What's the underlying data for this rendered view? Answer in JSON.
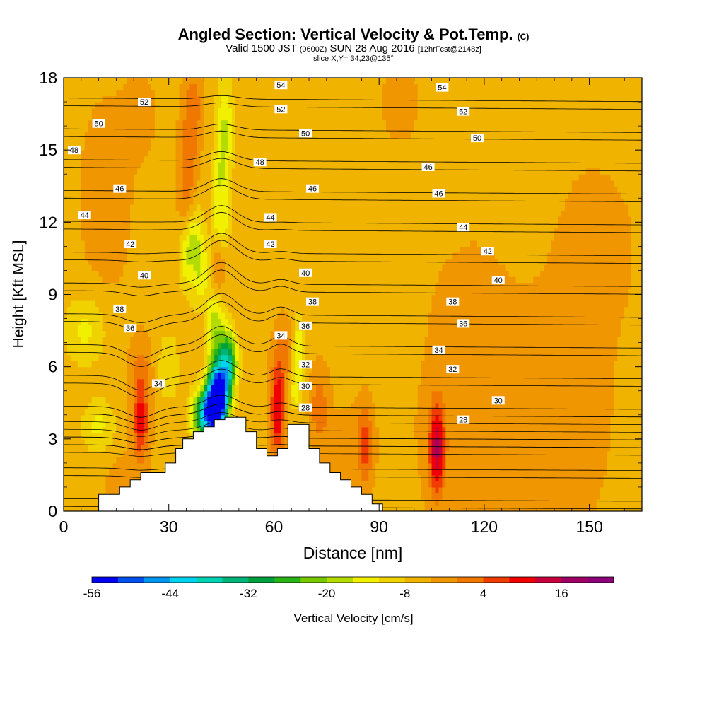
{
  "header": {
    "title_main": "Angled Section: Vertical Velocity & Pot.Temp.",
    "title_tag": "(C)",
    "valid_prefix": "Valid 1500 JST",
    "valid_utc": "(0600Z)",
    "valid_date": "SUN 28 Aug 2016",
    "forecast_tag": "[12hrFcst@2148z]",
    "slice": "slice X,Y= 34,23@135°"
  },
  "chart_data": {
    "type": "heatmap",
    "title": "Angled Section: Vertical Velocity & Pot.Temp.",
    "xlabel": "Distance [nm]",
    "ylabel": "Height [Kft MSL]",
    "xlim": [
      0,
      165
    ],
    "ylim": [
      0,
      18
    ],
    "x_ticks": [
      0,
      30,
      60,
      90,
      120,
      150
    ],
    "y_ticks": [
      0,
      3,
      6,
      9,
      12,
      15,
      18
    ],
    "grid": false,
    "colorbar": {
      "label": "Vertical Velocity [cm/s]",
      "tick_labels": [
        "-56",
        "-44",
        "-32",
        "-20",
        "-8",
        "4",
        "16"
      ],
      "tick_values": [
        -56,
        -44,
        -32,
        -20,
        -8,
        4,
        16
      ],
      "min": -56,
      "max": 24,
      "step": 4,
      "colors": [
        "#0000f0",
        "#0050f0",
        "#0096f0",
        "#00d2f0",
        "#00d2b4",
        "#00b478",
        "#00a03c",
        "#28b414",
        "#78c800",
        "#b4dc00",
        "#f0f000",
        "#f0d200",
        "#f0b400",
        "#f09600",
        "#f07800",
        "#f03c00",
        "#f00000",
        "#c8003c",
        "#a00064",
        "#8c0078"
      ]
    },
    "terrain_kft": [
      [
        0,
        0
      ],
      [
        10,
        0
      ],
      [
        10,
        0.7
      ],
      [
        16,
        0.7
      ],
      [
        16,
        1.0
      ],
      [
        19,
        1.0
      ],
      [
        19,
        1.3
      ],
      [
        22,
        1.3
      ],
      [
        22,
        1.6
      ],
      [
        29,
        1.6
      ],
      [
        29,
        2.0
      ],
      [
        32,
        2.0
      ],
      [
        32,
        2.6
      ],
      [
        34,
        2.6
      ],
      [
        34,
        3.0
      ],
      [
        37,
        3.0
      ],
      [
        37,
        3.3
      ],
      [
        40,
        3.3
      ],
      [
        40,
        3.5
      ],
      [
        43,
        3.5
      ],
      [
        43,
        3.8
      ],
      [
        46,
        3.8
      ],
      [
        46,
        3.9
      ],
      [
        52,
        3.9
      ],
      [
        52,
        3.3
      ],
      [
        55,
        3.3
      ],
      [
        55,
        2.6
      ],
      [
        58,
        2.6
      ],
      [
        58,
        2.3
      ],
      [
        61,
        2.3
      ],
      [
        61,
        2.6
      ],
      [
        64,
        2.6
      ],
      [
        64,
        3.6
      ],
      [
        70,
        3.6
      ],
      [
        70,
        2.6
      ],
      [
        73,
        2.6
      ],
      [
        73,
        2.0
      ],
      [
        76,
        2.0
      ],
      [
        76,
        1.6
      ],
      [
        79,
        1.6
      ],
      [
        79,
        1.3
      ],
      [
        82,
        1.3
      ],
      [
        82,
        1.0
      ],
      [
        85,
        1.0
      ],
      [
        85,
        0.7
      ],
      [
        88,
        0.7
      ],
      [
        88,
        0.3
      ],
      [
        91,
        0.3
      ],
      [
        91,
        0
      ]
    ],
    "theta_levels_c": [
      28,
      30,
      32,
      34,
      36,
      38,
      40,
      42,
      44,
      46,
      48,
      50,
      52,
      54
    ],
    "theta_labels": [
      {
        "text": "54",
        "x": 62,
        "y": 17.7
      },
      {
        "text": "54",
        "x": 108,
        "y": 17.6
      },
      {
        "text": "52",
        "x": 23,
        "y": 17.0
      },
      {
        "text": "52",
        "x": 62,
        "y": 16.7
      },
      {
        "text": "52",
        "x": 114,
        "y": 16.6
      },
      {
        "text": "50",
        "x": 10,
        "y": 16.1
      },
      {
        "text": "50",
        "x": 69,
        "y": 15.7
      },
      {
        "text": "50",
        "x": 118,
        "y": 15.5
      },
      {
        "text": "48",
        "x": 3,
        "y": 15.0
      },
      {
        "text": "48",
        "x": 56,
        "y": 14.5
      },
      {
        "text": "46",
        "x": 104,
        "y": 14.3
      },
      {
        "text": "46",
        "x": 16,
        "y": 13.4
      },
      {
        "text": "46",
        "x": 71,
        "y": 13.4
      },
      {
        "text": "46",
        "x": 107,
        "y": 13.2
      },
      {
        "text": "44",
        "x": 6,
        "y": 12.3
      },
      {
        "text": "44",
        "x": 59,
        "y": 12.2
      },
      {
        "text": "44",
        "x": 114,
        "y": 11.8
      },
      {
        "text": "42",
        "x": 19,
        "y": 11.1
      },
      {
        "text": "42",
        "x": 59,
        "y": 11.1
      },
      {
        "text": "42",
        "x": 121,
        "y": 10.8
      },
      {
        "text": "40",
        "x": 23,
        "y": 9.8
      },
      {
        "text": "40",
        "x": 69,
        "y": 9.9
      },
      {
        "text": "40",
        "x": 124,
        "y": 9.6
      },
      {
        "text": "38",
        "x": 16,
        "y": 8.4
      },
      {
        "text": "38",
        "x": 71,
        "y": 8.7
      },
      {
        "text": "38",
        "x": 111,
        "y": 8.7
      },
      {
        "text": "36",
        "x": 19,
        "y": 7.6
      },
      {
        "text": "36",
        "x": 69,
        "y": 7.7
      },
      {
        "text": "36",
        "x": 114,
        "y": 7.8
      },
      {
        "text": "34",
        "x": 62,
        "y": 7.3
      },
      {
        "text": "34",
        "x": 107,
        "y": 6.7
      },
      {
        "text": "34",
        "x": 27,
        "y": 5.3
      },
      {
        "text": "32",
        "x": 69,
        "y": 6.1
      },
      {
        "text": "32",
        "x": 111,
        "y": 5.9
      },
      {
        "text": "30",
        "x": 69,
        "y": 5.2
      },
      {
        "text": "30",
        "x": 124,
        "y": 4.6
      },
      {
        "text": "28",
        "x": 69,
        "y": 4.3
      },
      {
        "text": "28",
        "x": 114,
        "y": 3.8
      }
    ],
    "w_features": [
      {
        "x": 44,
        "y": 4.8,
        "sx": 3,
        "sy": 1.3,
        "w": -56
      },
      {
        "x": 41,
        "y": 4.0,
        "sx": 4,
        "sy": 1.0,
        "w": -38
      },
      {
        "x": 47,
        "y": 6.2,
        "sx": 2.5,
        "sy": 1.2,
        "w": -28
      },
      {
        "x": 43,
        "y": 7.6,
        "sx": 3,
        "sy": 1.5,
        "w": -14
      },
      {
        "x": 39.5,
        "y": 9.4,
        "sx": 2.5,
        "sy": 1.8,
        "w": -12
      },
      {
        "x": 37,
        "y": 11.3,
        "sx": 2.5,
        "sy": 1.6,
        "w": -12
      },
      {
        "x": 34.5,
        "y": 10.4,
        "sx": 2,
        "sy": 1.3,
        "w": -8
      },
      {
        "x": 45,
        "y": 12.0,
        "sx": 2.5,
        "sy": 1.2,
        "w": -10
      },
      {
        "x": 46,
        "y": 15.8,
        "sx": 2.5,
        "sy": 2.2,
        "w": -12
      },
      {
        "x": 44,
        "y": 13.8,
        "sx": 2.5,
        "sy": 1.2,
        "w": -7
      },
      {
        "x": 67,
        "y": 6.6,
        "sx": 1.7,
        "sy": 1.4,
        "w": -12
      },
      {
        "x": 66,
        "y": 4.9,
        "sx": 1.8,
        "sy": 0.8,
        "w": -7
      },
      {
        "x": 22,
        "y": 3.7,
        "sx": 2.3,
        "sy": 1.6,
        "w": 14
      },
      {
        "x": 22,
        "y": 5.8,
        "sx": 3,
        "sy": 1.4,
        "w": 6
      },
      {
        "x": 35.5,
        "y": 13.8,
        "sx": 2.5,
        "sy": 2.6,
        "w": 8
      },
      {
        "x": 37,
        "y": 16.8,
        "sx": 2.5,
        "sy": 1.6,
        "w": 7
      },
      {
        "x": 40,
        "y": 8.2,
        "sx": 2,
        "sy": 1.6,
        "w": 9
      },
      {
        "x": 44,
        "y": 10.1,
        "sx": 1.8,
        "sy": 1.2,
        "w": 7
      },
      {
        "x": 61,
        "y": 4.2,
        "sx": 2,
        "sy": 2.0,
        "w": 17
      },
      {
        "x": 63,
        "y": 6.6,
        "sx": 2.5,
        "sy": 1.3,
        "w": 6
      },
      {
        "x": 73,
        "y": 4.3,
        "sx": 2.5,
        "sy": 1.5,
        "w": 8
      },
      {
        "x": 86,
        "y": 2.8,
        "sx": 2.2,
        "sy": 1.5,
        "w": 12
      },
      {
        "x": 106.5,
        "y": 2.6,
        "sx": 2.2,
        "sy": 1.8,
        "w": 20
      },
      {
        "x": 120,
        "y": 5,
        "sx": 20,
        "sy": 6,
        "w": 3
      },
      {
        "x": 146,
        "y": 5.5,
        "sx": 12,
        "sy": 7,
        "w": 2
      },
      {
        "x": 153,
        "y": 11,
        "sx": 10,
        "sy": 3,
        "w": 2
      },
      {
        "x": 12,
        "y": 13,
        "sx": 7,
        "sy": 4,
        "w": 3
      },
      {
        "x": 22,
        "y": 16.5,
        "sx": 5,
        "sy": 2,
        "w": 2
      },
      {
        "x": 16,
        "y": 1.5,
        "sx": 6,
        "sy": 1.5,
        "w": 2
      },
      {
        "x": 80,
        "y": 2.5,
        "sx": 5,
        "sy": 2,
        "w": 2
      },
      {
        "x": 6,
        "y": 7.5,
        "sx": 6,
        "sy": 1.5,
        "w": -8
      },
      {
        "x": 10,
        "y": 3.5,
        "sx": 5,
        "sy": 1.2,
        "w": -8
      },
      {
        "x": 30,
        "y": 6,
        "sx": 3,
        "sy": 1.5,
        "w": -7
      },
      {
        "x": 95,
        "y": 8.5,
        "sx": 6,
        "sy": 3,
        "w": -3
      },
      {
        "x": 132,
        "y": 14,
        "sx": 8,
        "sy": 4,
        "w": -2
      },
      {
        "x": 96,
        "y": 17,
        "sx": 5,
        "sy": 1.5,
        "w": 3
      }
    ]
  }
}
